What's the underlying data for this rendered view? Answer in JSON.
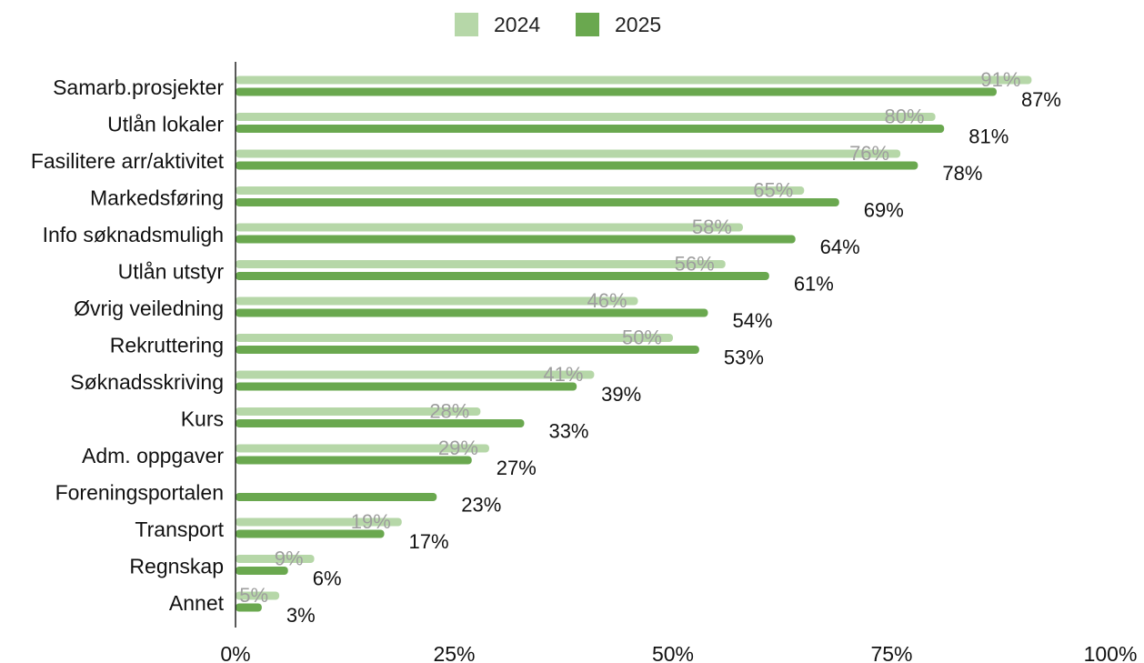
{
  "chart_data": {
    "type": "bar",
    "orientation": "horizontal",
    "categories": [
      "Samarb.prosjekter",
      "Utlån lokaler",
      "Fasilitere arr/aktivitet",
      "Markedsføring",
      "Info søknadsmuligh",
      "Utlån utstyr",
      "Øvrig veiledning",
      "Rekruttering",
      "Søknadsskriving",
      "Kurs",
      "Adm. oppgaver",
      "Foreningsportalen",
      "Transport",
      "Regnskap",
      "Annet"
    ],
    "series": [
      {
        "name": "2024",
        "color": "#b6d7a8",
        "label_color": "#9e9e9e",
        "values": [
          91,
          80,
          76,
          65,
          58,
          56,
          46,
          50,
          41,
          28,
          29,
          null,
          19,
          9,
          5
        ],
        "labels": [
          "91%",
          "80%",
          "76%",
          "65%",
          "58%",
          "56%",
          "46%",
          "50%",
          "41%",
          "28%",
          "29%",
          "",
          "19%",
          "9%",
          "5%"
        ]
      },
      {
        "name": "2025",
        "color": "#6aa84f",
        "label_color": "#111111",
        "values": [
          87,
          81,
          78,
          69,
          64,
          61,
          54,
          53,
          39,
          33,
          27,
          23,
          17,
          6,
          3
        ],
        "labels": [
          "87%",
          "81%",
          "78%",
          "69%",
          "64%",
          "61%",
          "54%",
          "53%",
          "39%",
          "33%",
          "27%",
          "23%",
          "17%",
          "6%",
          "3%"
        ]
      }
    ],
    "xlim": [
      0,
      100
    ],
    "x_ticks": [
      0,
      25,
      50,
      75,
      100
    ],
    "x_tick_labels": [
      "0%",
      "25%",
      "50%",
      "75%",
      "100%"
    ],
    "legend_position": "top-center",
    "grid": false
  }
}
